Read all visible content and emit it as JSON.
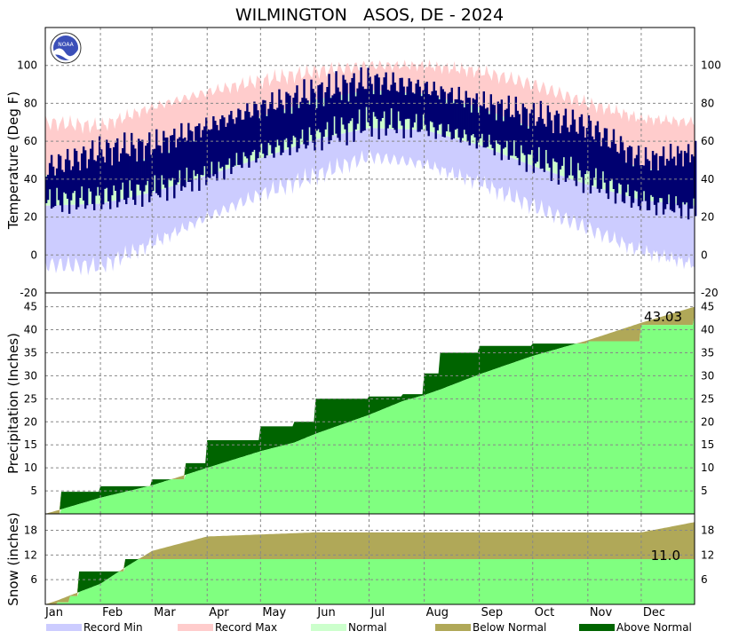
{
  "title": "WILMINGTON   ASOS, DE - 2024",
  "logo_text": "NOAA",
  "colors": {
    "record_min": "#ccccff",
    "record_max": "#ffcccc",
    "normal": "#ccffcc",
    "observed": "#000070",
    "precip_normal": "#80ff80",
    "above_normal": "#006400",
    "below_normal": "#b0a858",
    "grid": "#888888"
  },
  "legend": [
    {
      "key": "record_min",
      "label": "Record Min"
    },
    {
      "key": "record_max",
      "label": "Record Max"
    },
    {
      "key": "normal",
      "label": "Normal"
    },
    {
      "key": "below_normal",
      "label": "Below Normal"
    },
    {
      "key": "above_normal",
      "label": "Above Normal"
    }
  ],
  "chart_data": [
    {
      "type": "area",
      "panel": "temperature",
      "ylabel": "Temperature (Deg F)",
      "ylim": [
        -20,
        120
      ],
      "yticks": [
        -20,
        0,
        20,
        40,
        60,
        80,
        100
      ],
      "grid": true,
      "x": [
        "Jan 1",
        "Feb 1",
        "Mar 1",
        "Apr 1",
        "May 1",
        "Jun 1",
        "Jul 1",
        "Aug 1",
        "Sep 1",
        "Oct 1",
        "Nov 1",
        "Dec 1",
        "Dec 31"
      ],
      "series": [
        {
          "name": "Record Max",
          "values": [
            70,
            68,
            78,
            86,
            92,
            97,
            100,
            100,
            97,
            90,
            80,
            72,
            70
          ]
        },
        {
          "name": "Normal High",
          "values": [
            42,
            44,
            52,
            63,
            73,
            82,
            87,
            85,
            78,
            67,
            56,
            46,
            42
          ]
        },
        {
          "name": "Normal Low",
          "values": [
            26,
            27,
            33,
            42,
            51,
            61,
            67,
            66,
            58,
            47,
            37,
            29,
            26
          ]
        },
        {
          "name": "Record Min",
          "values": [
            -5,
            -6,
            6,
            20,
            32,
            42,
            52,
            48,
            38,
            26,
            14,
            2,
            -5
          ]
        },
        {
          "name": "Observed High",
          "values": [
            46,
            55,
            58,
            68,
            78,
            86,
            92,
            88,
            80,
            74,
            68,
            50,
            54
          ]
        },
        {
          "name": "Observed Low",
          "values": [
            28,
            30,
            34,
            42,
            54,
            62,
            70,
            68,
            60,
            50,
            40,
            28,
            24
          ]
        }
      ]
    },
    {
      "type": "area",
      "panel": "precipitation",
      "ylabel": "Precipitation (Inches)",
      "ylim": [
        0,
        48
      ],
      "yticks": [
        5,
        10,
        15,
        20,
        25,
        30,
        35,
        40,
        45
      ],
      "grid": true,
      "annotation": "43.03",
      "x": [
        "Jan 1",
        "Jan 10",
        "Feb 1",
        "Mar 1",
        "Mar 20",
        "Apr 1",
        "May 1",
        "May 20",
        "Jun 1",
        "Jul 1",
        "Jul 20",
        "Aug 1",
        "Aug 10",
        "Sep 1",
        "Oct 1",
        "Nov 1",
        "Dec 1",
        "Dec 31"
      ],
      "series": [
        {
          "name": "Observed",
          "values": [
            0,
            4.8,
            6.0,
            7.5,
            11.0,
            16.0,
            19.0,
            20.0,
            25.0,
            25.5,
            26.0,
            30.5,
            35.0,
            36.5,
            37.0,
            37.5,
            41.0,
            43.03
          ]
        },
        {
          "name": "Normal",
          "values": [
            0,
            1.0,
            3.5,
            6.2,
            8.5,
            10.0,
            13.6,
            15.5,
            17.4,
            21.5,
            24.5,
            25.8,
            27.0,
            30.3,
            34.3,
            37.7,
            41.5,
            45.0
          ]
        }
      ]
    },
    {
      "type": "area",
      "panel": "snow",
      "ylabel": "Snow (inches)",
      "ylim": [
        0,
        22
      ],
      "yticks": [
        6,
        12,
        18
      ],
      "grid": true,
      "annotation": "11.0",
      "x": [
        "Jan 1",
        "Jan 8",
        "Jan 15",
        "Jan 20",
        "Feb 1",
        "Feb 15",
        "Mar 1",
        "Apr 1",
        "Jun 1",
        "Dec 1",
        "Dec 31"
      ],
      "series": [
        {
          "name": "Observed",
          "values": [
            0,
            0.5,
            2.0,
            8.0,
            8.0,
            11.0,
            11.0,
            11.0,
            11.0,
            11.0,
            11.0
          ]
        },
        {
          "name": "Normal",
          "values": [
            0,
            1.0,
            2.2,
            3.0,
            5.0,
            9.0,
            13.0,
            16.5,
            17.5,
            17.5,
            20.0
          ]
        }
      ]
    }
  ],
  "months": [
    "Jan",
    "Feb",
    "Mar",
    "Apr",
    "May",
    "Jun",
    "Jul",
    "Aug",
    "Sep",
    "Oct",
    "Nov",
    "Dec"
  ]
}
